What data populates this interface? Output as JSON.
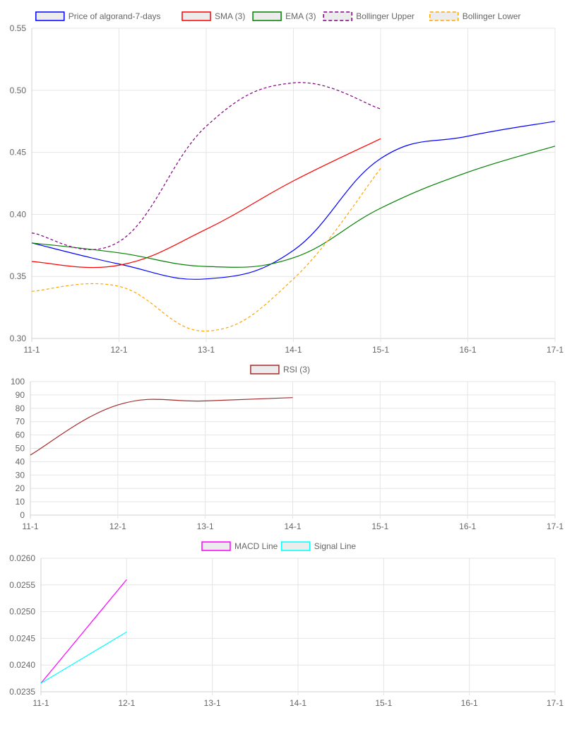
{
  "chart_data": [
    {
      "type": "line",
      "x": [
        "11-1",
        "12-1",
        "13-1",
        "14-1",
        "15-1",
        "16-1",
        "17-1"
      ],
      "ylim": [
        0.3,
        0.55
      ],
      "y_ticks": [
        "0.30",
        "0.35",
        "0.40",
        "0.45",
        "0.50",
        "0.55"
      ],
      "grid": true,
      "legend": "top-center",
      "series": [
        {
          "name": "Price of algorand-7-days",
          "color": "#0000ff",
          "dashed": false,
          "values": [
            0.377,
            0.36,
            0.348,
            0.371,
            0.445,
            0.463,
            0.475
          ]
        },
        {
          "name": "SMA (3)",
          "color": "#ff0000",
          "dashed": false,
          "values": [
            0.362,
            0.359,
            0.388,
            0.427,
            0.461,
            null,
            null
          ]
        },
        {
          "name": "EMA (3)",
          "color": "#008000",
          "dashed": false,
          "values": [
            0.377,
            0.369,
            0.358,
            0.365,
            0.405,
            0.434,
            0.455
          ]
        },
        {
          "name": "Bollinger Upper",
          "color": "#800080",
          "dashed": true,
          "values": [
            0.385,
            0.378,
            0.471,
            0.506,
            0.485,
            null,
            null
          ]
        },
        {
          "name": "Bollinger Lower",
          "color": "#ffa500",
          "dashed": true,
          "values": [
            0.338,
            0.342,
            0.306,
            0.348,
            0.437,
            null,
            null
          ]
        }
      ]
    },
    {
      "type": "line",
      "x": [
        "11-1",
        "12-1",
        "13-1",
        "14-1",
        "15-1",
        "16-1",
        "17-1"
      ],
      "ylim": [
        0,
        100
      ],
      "y_ticks": [
        "0",
        "10",
        "20",
        "30",
        "40",
        "50",
        "60",
        "70",
        "80",
        "90",
        "100"
      ],
      "grid": true,
      "legend": "top-center",
      "series": [
        {
          "name": "RSI (3)",
          "color": "#a52a2a",
          "dashed": false,
          "values": [
            45,
            82.5,
            85.5,
            88,
            null,
            null,
            null
          ]
        }
      ]
    },
    {
      "type": "line",
      "x": [
        "11-1",
        "12-1",
        "13-1",
        "14-1",
        "15-1",
        "16-1",
        "17-1"
      ],
      "ylim": [
        0.0235,
        0.026
      ],
      "y_ticks": [
        "0.0235",
        "0.0240",
        "0.0245",
        "0.0250",
        "0.0255",
        "0.0260"
      ],
      "grid": true,
      "legend": "top-center",
      "series": [
        {
          "name": "MACD Line",
          "color": "#ff00ff",
          "dashed": false,
          "values": [
            0.02366,
            0.0256,
            null,
            null,
            null,
            null,
            null
          ]
        },
        {
          "name": "Signal Line",
          "color": "#00ffff",
          "dashed": false,
          "values": [
            0.02366,
            0.02462,
            null,
            null,
            null,
            null,
            null
          ]
        }
      ]
    }
  ]
}
